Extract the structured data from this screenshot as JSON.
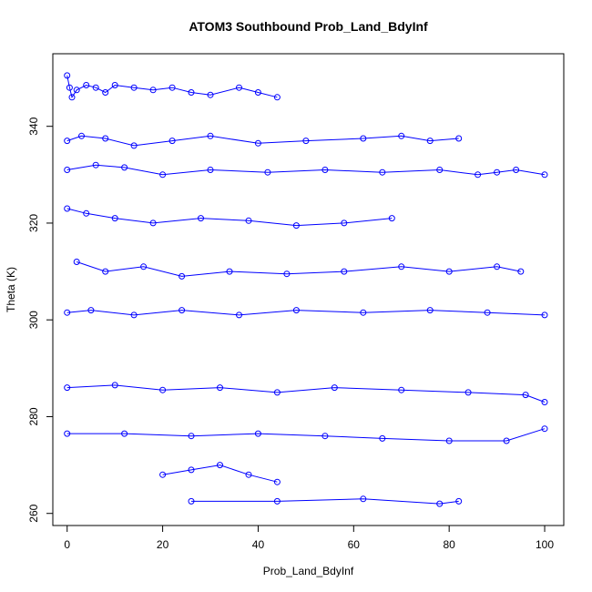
{
  "chart_data": {
    "type": "line",
    "title": "ATOM3 Southbound Prob_Land_BdyInf",
    "xlabel": "Prob_Land_BdyInf",
    "ylabel": "Theta (K)",
    "xlim": [
      -3,
      104
    ],
    "ylim": [
      257.5,
      355
    ],
    "xticks": [
      0,
      20,
      40,
      60,
      80,
      100
    ],
    "yticks": [
      260,
      280,
      300,
      320,
      340
    ],
    "series_color": "#0000ff",
    "marker": "open-circle",
    "grid": false,
    "legend": "none",
    "series": [
      {
        "x": [
          0,
          0.5,
          1,
          2,
          4,
          6,
          8,
          10,
          14,
          18,
          22,
          26,
          30,
          36,
          40,
          44
        ],
        "y": [
          350.5,
          348,
          346,
          347.5,
          348.5,
          348,
          347,
          348.5,
          348,
          347.5,
          348,
          347,
          346.5,
          348,
          347,
          346
        ]
      },
      {
        "x": [
          0,
          3,
          8,
          14,
          22,
          30,
          40,
          50,
          62,
          70,
          76,
          82
        ],
        "y": [
          337,
          338,
          337.5,
          336,
          337,
          338,
          336.5,
          337,
          337.5,
          338,
          337,
          337.5
        ]
      },
      {
        "x": [
          0,
          6,
          12,
          20,
          30,
          42,
          54,
          66,
          78,
          86,
          90,
          94,
          100
        ],
        "y": [
          331,
          332,
          331.5,
          330,
          331,
          330.5,
          331,
          330.5,
          331,
          330,
          330.5,
          331,
          330
        ]
      },
      {
        "x": [
          0,
          4,
          10,
          18,
          28,
          38,
          48,
          58,
          68
        ],
        "y": [
          323,
          322,
          321,
          320,
          321,
          320.5,
          319.5,
          320,
          321
        ]
      },
      {
        "x": [
          2,
          8,
          16,
          24,
          34,
          46,
          58,
          70,
          80,
          90,
          95
        ],
        "y": [
          312,
          310,
          311,
          309,
          310,
          309.5,
          310,
          311,
          310,
          311,
          310
        ]
      },
      {
        "x": [
          0,
          5,
          14,
          24,
          36,
          48,
          62,
          76,
          88,
          100
        ],
        "y": [
          301.5,
          302,
          301,
          302,
          301,
          302,
          301.5,
          302,
          301.5,
          301
        ]
      },
      {
        "x": [
          0,
          10,
          20,
          32,
          44,
          56,
          70,
          84,
          96,
          100
        ],
        "y": [
          286,
          286.5,
          285.5,
          286,
          285,
          286,
          285.5,
          285,
          284.5,
          283
        ]
      },
      {
        "x": [
          0,
          12,
          26,
          40,
          54,
          66,
          80,
          92,
          100
        ],
        "y": [
          276.5,
          276.5,
          276,
          276.5,
          276,
          275.5,
          275,
          275,
          277.5
        ]
      },
      {
        "x": [
          20,
          26,
          32,
          38,
          44
        ],
        "y": [
          268,
          269,
          270,
          268,
          266.5
        ]
      },
      {
        "x": [
          26,
          44,
          62,
          78,
          82
        ],
        "y": [
          262.5,
          262.5,
          263,
          262,
          262.5
        ]
      }
    ]
  }
}
